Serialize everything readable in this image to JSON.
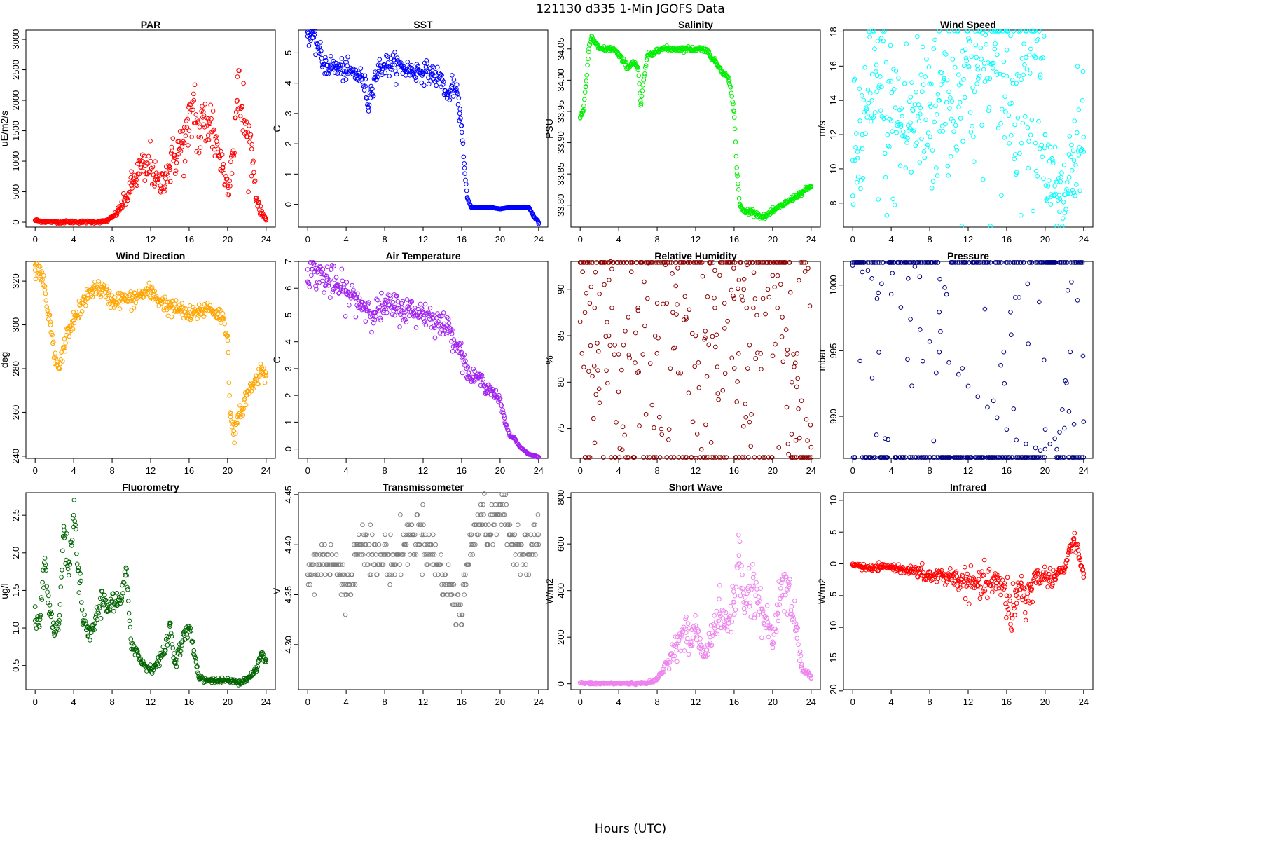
{
  "figure": {
    "title": "121130   d335   1-Min  JGOFS Data",
    "xlabel": "Hours (UTC)"
  },
  "chart_data": [
    {
      "type": "scatter",
      "title": "PAR",
      "ylabel": "uE/m2/s",
      "color": "#ff0000",
      "xlim": [
        0,
        24
      ],
      "xticks": [
        0,
        4,
        8,
        12,
        16,
        20,
        24
      ],
      "ylim": [
        -80,
        3150
      ],
      "yticks": [
        0,
        500,
        1000,
        1500,
        2000,
        2500,
        3000
      ],
      "tick_labels": [
        "0",
        "500",
        "1000",
        "1500",
        "2000",
        "2500",
        "3000"
      ],
      "x": [
        0,
        1,
        2,
        3,
        4,
        5,
        6,
        7,
        7.5,
        8,
        8.5,
        9,
        9.5,
        10,
        10.5,
        11,
        11.5,
        12,
        12.5,
        13,
        13.5,
        14,
        14.5,
        15,
        15.5,
        16,
        16.5,
        17,
        17.5,
        18,
        18.5,
        19,
        19.5,
        20,
        20.5,
        21,
        21.5,
        22,
        22.5,
        23,
        23.5,
        24
      ],
      "y": [
        30,
        10,
        5,
        5,
        5,
        5,
        5,
        10,
        30,
        80,
        150,
        280,
        400,
        600,
        750,
        900,
        800,
        1000,
        700,
        600,
        800,
        900,
        1100,
        1200,
        1300,
        1500,
        2000,
        1400,
        1600,
        1700,
        1500,
        1200,
        900,
        600,
        1100,
        2000,
        1900,
        1400,
        1200,
        400,
        150,
        60
      ],
      "spread": 0.3
    },
    {
      "type": "scatter",
      "title": "SST",
      "ylabel": "C",
      "color": "#0000ff",
      "xlim": [
        0,
        24
      ],
      "xticks": [
        0,
        4,
        8,
        12,
        16,
        20,
        24
      ],
      "ylim": [
        -0.75,
        5.75
      ],
      "yticks": [
        0,
        1,
        2,
        3,
        4,
        5
      ],
      "tick_labels": [
        "0",
        "1",
        "2",
        "3",
        "4",
        "5"
      ],
      "x": [
        0,
        0.5,
        1,
        1.5,
        2,
        3,
        4,
        5,
        5.5,
        6,
        6.3,
        6.6,
        7,
        7.5,
        8,
        9,
        10,
        11,
        12,
        13,
        14,
        14.5,
        15,
        15.5,
        15.8,
        16,
        16.3,
        16.6,
        17,
        18,
        19,
        20,
        21,
        22,
        23,
        23.5,
        24
      ],
      "y": [
        5.55,
        5.5,
        5.3,
        4.7,
        4.6,
        4.5,
        4.4,
        4.3,
        4.2,
        3.9,
        3.2,
        3.8,
        4.2,
        4.5,
        4.6,
        4.6,
        4.5,
        4.4,
        4.4,
        4.3,
        4.1,
        3.5,
        3.9,
        3.7,
        3,
        2.6,
        1.2,
        0.2,
        -0.1,
        -0.1,
        -0.1,
        -0.15,
        -0.1,
        -0.1,
        -0.1,
        -0.4,
        -0.6
      ],
      "spread": 0.04
    },
    {
      "type": "scatter",
      "title": "Salinity",
      "ylabel": "PSU",
      "color": "#00ee00",
      "xlim": [
        0,
        24
      ],
      "xticks": [
        0,
        4,
        8,
        12,
        16,
        20,
        24
      ],
      "ylim": [
        33.765,
        34.08
      ],
      "yticks": [
        33.8,
        33.85,
        33.9,
        33.95,
        34,
        34.05
      ],
      "tick_labels": [
        "33.80",
        "33.85",
        "33.90",
        "33.95",
        "34.00",
        "34.05"
      ],
      "x": [
        0,
        0.3,
        0.6,
        0.9,
        1.2,
        1.5,
        2,
        3,
        3.5,
        4,
        4.5,
        5,
        5.5,
        6,
        6.3,
        6.6,
        7,
        7.5,
        8,
        9,
        10,
        11,
        12,
        13,
        13.5,
        14,
        14.5,
        15,
        15.5,
        16,
        16.3,
        16.6,
        17,
        18,
        19,
        20,
        21,
        22,
        23,
        24
      ],
      "y": [
        33.94,
        33.95,
        33.99,
        34.05,
        34.07,
        34.06,
        34.05,
        34.05,
        34.05,
        34.04,
        34.03,
        34.02,
        34.03,
        34.02,
        33.96,
        34.0,
        34.04,
        34.04,
        34.05,
        34.05,
        34.05,
        34.05,
        34.05,
        34.05,
        34.04,
        34.03,
        34.02,
        34.01,
        34.0,
        33.95,
        33.85,
        33.8,
        33.79,
        33.79,
        33.78,
        33.79,
        33.8,
        33.81,
        33.82,
        33.83
      ],
      "spread": 0.0025
    },
    {
      "type": "scatter",
      "title": "Wind Speed",
      "ylabel": "m/s",
      "color": "#00ffff",
      "xlim": [
        0,
        24
      ],
      "xticks": [
        0,
        4,
        8,
        12,
        16,
        20,
        24
      ],
      "ylim": [
        6.6,
        18.1
      ],
      "yticks": [
        8,
        10,
        12,
        14,
        16,
        18
      ],
      "tick_labels": [
        "8",
        "10",
        "12",
        "14",
        "16",
        "18"
      ],
      "x": [
        0,
        0.5,
        1,
        1.5,
        2,
        2.5,
        3,
        3.5,
        4,
        5,
        6,
        7,
        8,
        9,
        10,
        11,
        12,
        13,
        14,
        15,
        16,
        17,
        17.5,
        18,
        18.5,
        19,
        19.5,
        20,
        20.3,
        20.6,
        21,
        21.5,
        22,
        22.5,
        23,
        23.5,
        24
      ],
      "y": [
        10.5,
        11,
        12,
        13,
        14,
        14.5,
        14.8,
        13,
        12.8,
        12.6,
        12.7,
        13.2,
        13.8,
        14,
        14.5,
        15.5,
        16,
        15.8,
        15.3,
        15.5,
        15.4,
        15,
        15.2,
        16.5,
        17,
        16.5,
        15.5,
        12,
        9,
        8.5,
        9,
        7.5,
        8.5,
        9.5,
        10.5,
        10.8,
        11
      ],
      "spread": 0.35
    },
    {
      "type": "scatter",
      "title": "Wind Direction",
      "ylabel": "deg",
      "color": "#ffa500",
      "xlim": [
        0,
        24
      ],
      "xticks": [
        0,
        4,
        8,
        12,
        16,
        20,
        24
      ],
      "ylim": [
        239,
        329
      ],
      "yticks": [
        240,
        260,
        280,
        300,
        320
      ],
      "tick_labels": [
        "240",
        "260",
        "280",
        "300",
        "320"
      ],
      "x": [
        0,
        0.5,
        1,
        1.3,
        1.6,
        2,
        2.5,
        3,
        3.5,
        4,
        5,
        6,
        7,
        8,
        9,
        10,
        11,
        12,
        13,
        14,
        15,
        16,
        17,
        18,
        19,
        19.5,
        20,
        20.3,
        20.6,
        21,
        21.5,
        22,
        22.5,
        23,
        23.5,
        24
      ],
      "y": [
        325,
        324,
        316,
        305,
        300,
        285,
        280,
        290,
        298,
        302,
        310,
        317,
        316,
        311,
        312,
        311,
        314,
        315,
        311,
        308,
        307,
        304,
        306,
        308,
        305,
        303,
        295,
        258,
        250,
        255,
        262,
        268,
        272,
        275,
        280,
        277
      ],
      "spread": 2
    },
    {
      "type": "scatter",
      "title": "Air Temperature",
      "ylabel": "C",
      "color": "#a020f0",
      "xlim": [
        0,
        24
      ],
      "xticks": [
        0,
        4,
        8,
        12,
        16,
        20,
        24
      ],
      "ylim": [
        -0.35,
        7.0
      ],
      "yticks": [
        0,
        1,
        2,
        3,
        4,
        5,
        6,
        7
      ],
      "tick_labels": [
        "0",
        "1",
        "2",
        "3",
        "4",
        "5",
        "6",
        "7"
      ],
      "x": [
        0,
        1,
        2,
        3,
        4,
        5,
        6,
        7,
        8,
        9,
        10,
        11,
        12,
        13,
        14,
        14.5,
        15,
        15.5,
        16,
        16.5,
        17,
        17.5,
        18,
        18.5,
        19,
        19.5,
        20,
        20.5,
        21,
        21.5,
        22,
        23,
        24
      ],
      "y": [
        6.7,
        6.6,
        6.3,
        6.1,
        5.8,
        5.6,
        5.3,
        5.1,
        5.3,
        5.3,
        5.2,
        5.1,
        5.1,
        4.9,
        4.6,
        4.6,
        4.3,
        3.9,
        3.6,
        3.0,
        2.6,
        2.7,
        2.6,
        2.3,
        2.3,
        2.0,
        1.8,
        1.0,
        0.5,
        0.4,
        0.1,
        -0.2,
        -0.3
      ],
      "spread": 0.05
    },
    {
      "type": "scatter",
      "title": "Relative Humidity",
      "ylabel": "%",
      "color": "#8b0000",
      "xlim": [
        0,
        24
      ],
      "xticks": [
        0,
        4,
        8,
        12,
        16,
        20,
        24
      ],
      "ylim": [
        71.8,
        93
      ],
      "yticks": [
        75,
        80,
        85,
        90
      ],
      "tick_labels": [
        "75",
        "80",
        "85",
        "90"
      ],
      "x": [
        0,
        0.5,
        1,
        1.5,
        2,
        2.5,
        3,
        3.3,
        3.6,
        4,
        4.5,
        5,
        6,
        7,
        8,
        9,
        10,
        11,
        12,
        13,
        14,
        15,
        16,
        16.5,
        17,
        17.3,
        17.6,
        18,
        19,
        19.5,
        20,
        20.5,
        21,
        21.5,
        22,
        22.5,
        23,
        23.5,
        24
      ],
      "y": [
        86.5,
        87.5,
        88.5,
        88,
        89.5,
        90.5,
        91,
        88,
        84,
        83,
        84,
        87,
        88,
        89,
        88.5,
        88.5,
        87.3,
        87,
        85,
        85.5,
        88,
        88.5,
        89,
        91,
        90,
        88,
        84,
        88,
        89,
        90,
        91.5,
        88,
        87,
        83,
        80,
        79.5,
        78,
        76,
        73
      ],
      "spread": 0.35
    },
    {
      "type": "scatter",
      "title": "Pressure",
      "ylabel": "mbar",
      "color": "#000080",
      "xlim": [
        0,
        24
      ],
      "xticks": [
        0,
        4,
        8,
        12,
        16,
        20,
        24
      ],
      "ylim": [
        986.8,
        1001.8
      ],
      "yticks": [
        990,
        995,
        1000
      ],
      "tick_labels": [
        "990",
        "995",
        "1000"
      ],
      "x": [
        0,
        1,
        2,
        3,
        4,
        5,
        6,
        7,
        8,
        9,
        10,
        11,
        12,
        13,
        14,
        15,
        16,
        17,
        18,
        19,
        19.5,
        20,
        20.5,
        21,
        21.5,
        22,
        23,
        24
      ],
      "y": [
        1001.5,
        1001,
        1000.5,
        1000.1,
        999.3,
        998.3,
        997.4,
        996.6,
        995.7,
        994.9,
        994.1,
        993.2,
        992.3,
        991.5,
        990.7,
        989.9,
        989.0,
        988.2,
        987.9,
        987.6,
        987.4,
        987.5,
        987.9,
        988.3,
        988.8,
        989.1,
        989.4,
        989.6
      ],
      "spread": 0.06
    },
    {
      "type": "scatter",
      "title": "Fluorometry",
      "ylabel": "ug/l",
      "color": "#006400",
      "xlim": [
        0,
        24
      ],
      "xticks": [
        0,
        4,
        8,
        12,
        16,
        20,
        24
      ],
      "ylim": [
        0.18,
        2.8
      ],
      "yticks": [
        0.5,
        1,
        1.5,
        2,
        2.5
      ],
      "tick_labels": [
        "0.5",
        "1.0",
        "1.5",
        "2.0",
        "2.5"
      ],
      "x": [
        0,
        0.5,
        1,
        1.5,
        2,
        2.5,
        3,
        3.5,
        4,
        4.5,
        5,
        5.5,
        6,
        7,
        7.5,
        8,
        8.5,
        9,
        9.5,
        10,
        10.5,
        11,
        12,
        12.5,
        13,
        13.5,
        14,
        14.5,
        15,
        15.5,
        16,
        16.5,
        17,
        18,
        19,
        20,
        21,
        22,
        23,
        23.5,
        24
      ],
      "y": [
        1.1,
        1.15,
        1.8,
        1.2,
        0.9,
        1.1,
        2.3,
        1.7,
        2.5,
        1.8,
        1.1,
        0.9,
        1.0,
        1.4,
        1.3,
        1.35,
        1.3,
        1.4,
        1.7,
        0.8,
        0.7,
        0.55,
        0.45,
        0.5,
        0.6,
        0.7,
        1.05,
        0.55,
        0.7,
        0.9,
        1.0,
        0.7,
        0.35,
        0.3,
        0.3,
        0.3,
        0.28,
        0.32,
        0.45,
        0.65,
        0.55
      ],
      "spread": 0.06
    },
    {
      "type": "scatter",
      "title": "Transmissometer",
      "ylabel": "V",
      "color": "#808080",
      "xlim": [
        0,
        24
      ],
      "xticks": [
        0,
        4,
        8,
        12,
        16,
        20,
        24
      ],
      "ylim": [
        4.255,
        4.452
      ],
      "yticks": [
        4.3,
        4.35,
        4.4,
        4.45
      ],
      "tick_labels": [
        "4.30",
        "4.35",
        "4.40",
        "4.45"
      ],
      "x": [
        0,
        1,
        2,
        3,
        4,
        5,
        6,
        7,
        8,
        9,
        10,
        11,
        12,
        13,
        14,
        15,
        16,
        17,
        18,
        19,
        20,
        21,
        22,
        23,
        24
      ],
      "y": [
        4.37,
        4.38,
        4.39,
        4.38,
        4.35,
        4.39,
        4.41,
        4.38,
        4.39,
        4.38,
        4.4,
        4.41,
        4.41,
        4.39,
        4.37,
        4.35,
        4.33,
        4.41,
        4.43,
        4.41,
        4.44,
        4.41,
        4.4,
        4.39,
        4.41
      ],
      "spread": 0.015,
      "quantize": 0.01
    },
    {
      "type": "scatter",
      "title": "Short Wave",
      "ylabel": "W/m2",
      "color": "#ee82ee",
      "xlim": [
        0,
        24
      ],
      "xticks": [
        0,
        4,
        8,
        12,
        16,
        20,
        24
      ],
      "ylim": [
        -25,
        820
      ],
      "yticks": [
        0,
        200,
        400,
        600,
        800
      ],
      "tick_labels": [
        "0",
        "200",
        "400",
        "600",
        "800"
      ],
      "x": [
        0,
        1,
        2,
        3,
        4,
        5,
        6,
        7,
        7.5,
        8,
        8.5,
        9,
        9.5,
        10,
        10.5,
        11,
        11.5,
        12,
        12.5,
        13,
        13.5,
        14,
        14.5,
        15,
        15.5,
        16,
        16.5,
        17,
        17.5,
        18,
        18.5,
        19,
        19.5,
        20,
        20.5,
        21,
        21.5,
        22,
        22.5,
        23,
        23.5,
        24
      ],
      "y": [
        5,
        2,
        2,
        2,
        2,
        2,
        2,
        5,
        10,
        20,
        50,
        90,
        130,
        170,
        200,
        220,
        180,
        250,
        150,
        130,
        200,
        250,
        300,
        250,
        280,
        350,
        550,
        350,
        400,
        420,
        350,
        300,
        250,
        180,
        300,
        450,
        400,
        300,
        230,
        70,
        50,
        25
      ],
      "spread": 0.25
    },
    {
      "type": "scatter",
      "title": "Infrared",
      "ylabel": "W/m2",
      "color": "#ff0000",
      "xlim": [
        0,
        24
      ],
      "xticks": [
        0,
        4,
        8,
        12,
        16,
        20,
        24
      ],
      "ylim": [
        -19.8,
        11.2
      ],
      "yticks": [
        -20,
        -15,
        -10,
        -5,
        0,
        5,
        10
      ],
      "tick_labels": [
        "-20",
        "-15",
        "-10",
        "-5",
        "0",
        "5",
        "10"
      ],
      "x": [
        0,
        1,
        2,
        3,
        4,
        5,
        6,
        7,
        8,
        9,
        10,
        11,
        12,
        13,
        14,
        15,
        16,
        16.5,
        17,
        17.5,
        18,
        18.5,
        19,
        20,
        21,
        21.5,
        22,
        22.5,
        23,
        23.5,
        24
      ],
      "y": [
        0,
        -0.5,
        -0.8,
        -0.5,
        -0.5,
        -0.8,
        -1,
        -1.5,
        -2,
        -1.8,
        -2,
        -2.5,
        -3,
        -3.5,
        -3,
        -3,
        -5,
        -8,
        -5,
        -3,
        -6,
        -4,
        -2,
        -2,
        -2,
        -1,
        -1,
        2,
        4,
        1,
        -1.5
      ],
      "spread": 0.6
    }
  ]
}
